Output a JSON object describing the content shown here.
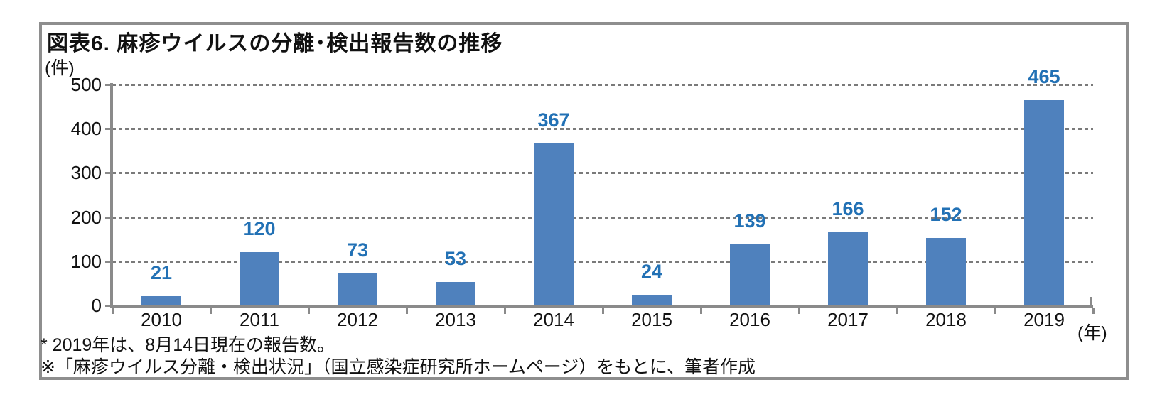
{
  "figure": {
    "title": "図表6.  麻疹ウイルスの分離･検出報告数の推移",
    "y_axis_unit": "(件)",
    "x_axis_unit": "(年)",
    "footnote_1": "* 2019年は、8月14日現在の報告数。",
    "footnote_2": "※「麻疹ウイルス分離・検出状況」（国立感染症研究所ホームページ）をもとに、筆者作成"
  },
  "chart_data": {
    "type": "bar",
    "title": "図表6. 麻疹ウイルスの分離･検出報告数の推移",
    "categories": [
      "2010",
      "2011",
      "2012",
      "2013",
      "2014",
      "2015",
      "2016",
      "2017",
      "2018",
      "2019"
    ],
    "values": [
      21,
      120,
      73,
      53,
      367,
      24,
      139,
      166,
      152,
      465
    ],
    "xlabel": "年",
    "ylabel": "件",
    "ylim": [
      0,
      500
    ],
    "yticks": [
      0,
      100,
      200,
      300,
      400,
      500
    ],
    "grid": "horizontal-dotted",
    "legend": "none",
    "data_labels": "above-bars",
    "colors": {
      "bar": "#4F81BD",
      "value_label": "#2271B5",
      "axis": "#8A8A8A",
      "gridline": "#7A7A7A",
      "frame_border": "#8E8E8E",
      "text": "#111111"
    }
  }
}
